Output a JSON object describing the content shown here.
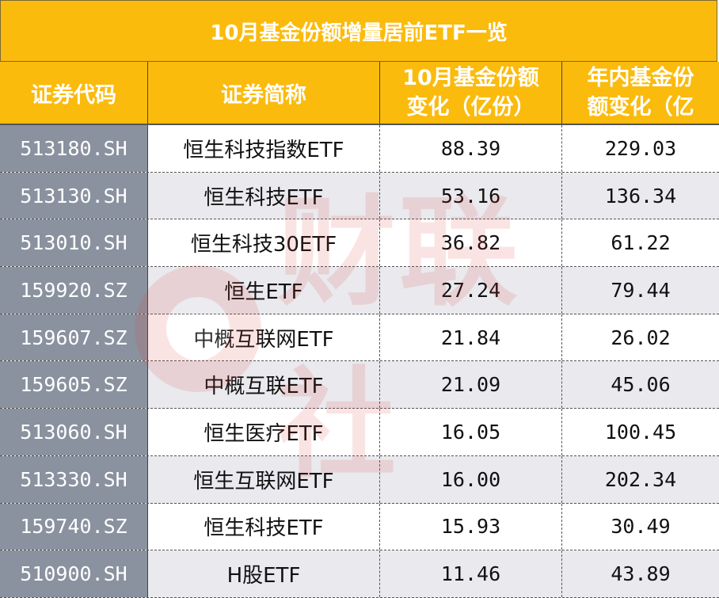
{
  "title": "10月基金份额增量居前ETF一览",
  "headers": {
    "code": "证券代码",
    "name": "证券简称",
    "oct_change_line1": "10月基金份额",
    "oct_change_line2": "变化（亿份）",
    "ytd_change_line1": "年内基金份",
    "ytd_change_line2": "额变化（亿"
  },
  "rows": [
    {
      "code": "513180.SH",
      "name": "恒生科技指数ETF",
      "oct": "88.39",
      "ytd": "229.03"
    },
    {
      "code": "513130.SH",
      "name": "恒生科技ETF",
      "oct": "53.16",
      "ytd": "136.34"
    },
    {
      "code": "513010.SH",
      "name": "恒生科技30ETF",
      "oct": "36.82",
      "ytd": "61.22"
    },
    {
      "code": "159920.SZ",
      "name": "恒生ETF",
      "oct": "27.24",
      "ytd": "79.44"
    },
    {
      "code": "159607.SZ",
      "name": "中概互联网ETF",
      "oct": "21.84",
      "ytd": "26.02"
    },
    {
      "code": "159605.SZ",
      "name": "中概互联ETF",
      "oct": "21.09",
      "ytd": "45.06"
    },
    {
      "code": "513060.SH",
      "name": "恒生医疗ETF",
      "oct": "16.05",
      "ytd": "100.45"
    },
    {
      "code": "513330.SH",
      "name": "恒生互联网ETF",
      "oct": "16.00",
      "ytd": "202.34"
    },
    {
      "code": "159740.SZ",
      "name": "恒生科技ETF",
      "oct": "15.93",
      "ytd": "30.49"
    },
    {
      "code": "510900.SH",
      "name": "H股ETF",
      "oct": "11.46",
      "ytd": "43.89"
    }
  ],
  "watermark": {
    "text": "财联社",
    "icon": "cailianshe-logo-icon"
  },
  "colors": {
    "header_bg": "#fbbb0d",
    "code_col_bg": "#8a929f",
    "alt_row_bg": "#e9e9ee"
  }
}
